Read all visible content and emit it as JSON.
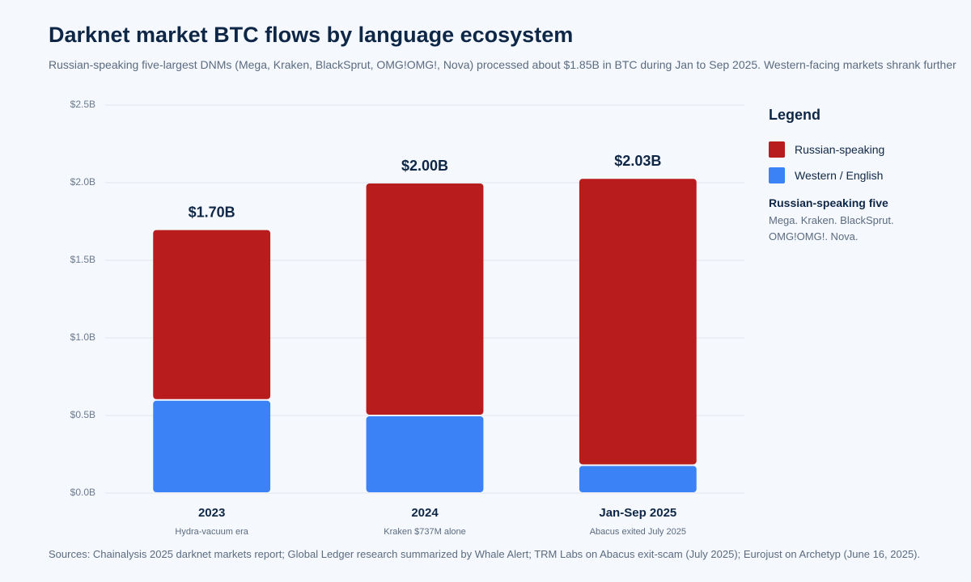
{
  "chart_data": {
    "type": "stacked_bar",
    "title": "Darknet market BTC flows by language ecosystem",
    "subtitle": "Russian-speaking five-largest DNMs (Mega, Kraken, BlackSprut, OMG!OMG!, Nova) processed about $1.85B in BTC during Jan to Sep 2025. Western-facing markets shrank further",
    "categories": [
      "2023",
      "2024",
      "Jan-Sep 2025"
    ],
    "category_notes": [
      "Hydra-vacuum era",
      "Kraken $737M alone",
      "Abacus exited July 2025"
    ],
    "series": [
      {
        "name": "Western / English",
        "color": "#3b82f6",
        "values": [
          0.6,
          0.5,
          0.18
        ]
      },
      {
        "name": "Russian-speaking",
        "color": "#b91c1c",
        "values": [
          1.1,
          1.5,
          1.85
        ]
      }
    ],
    "totals": {
      "values": [
        1.7,
        2.0,
        2.03
      ],
      "value_labels": [
        "$1.70B",
        "$2.00B",
        "$2.03B"
      ]
    },
    "ylim": [
      0,
      2.5
    ],
    "yticks": [
      {
        "value": 0,
        "label": "$0.0B"
      },
      {
        "value": 0.5,
        "label": "$0.5B"
      },
      {
        "value": 1.0,
        "label": "$1.0B"
      },
      {
        "value": 1.5,
        "label": "$1.5B"
      },
      {
        "value": 2.0,
        "label": "$2.0B"
      },
      {
        "value": 2.5,
        "label": "$2.5B"
      }
    ],
    "grid": true,
    "legend_title": "Legend",
    "legend_note_title": "Russian-speaking five",
    "legend_note": "Mega. Kraken. BlackSprut. OMG!OMG!. Nova.",
    "sources": "Sources: Chainalysis 2025 darknet markets report; Global Ledger research summarized by Whale Alert; TRM Labs on Abacus exit-scam (July 2025); Eurojust on Archetyp (June 16, 2025)."
  }
}
